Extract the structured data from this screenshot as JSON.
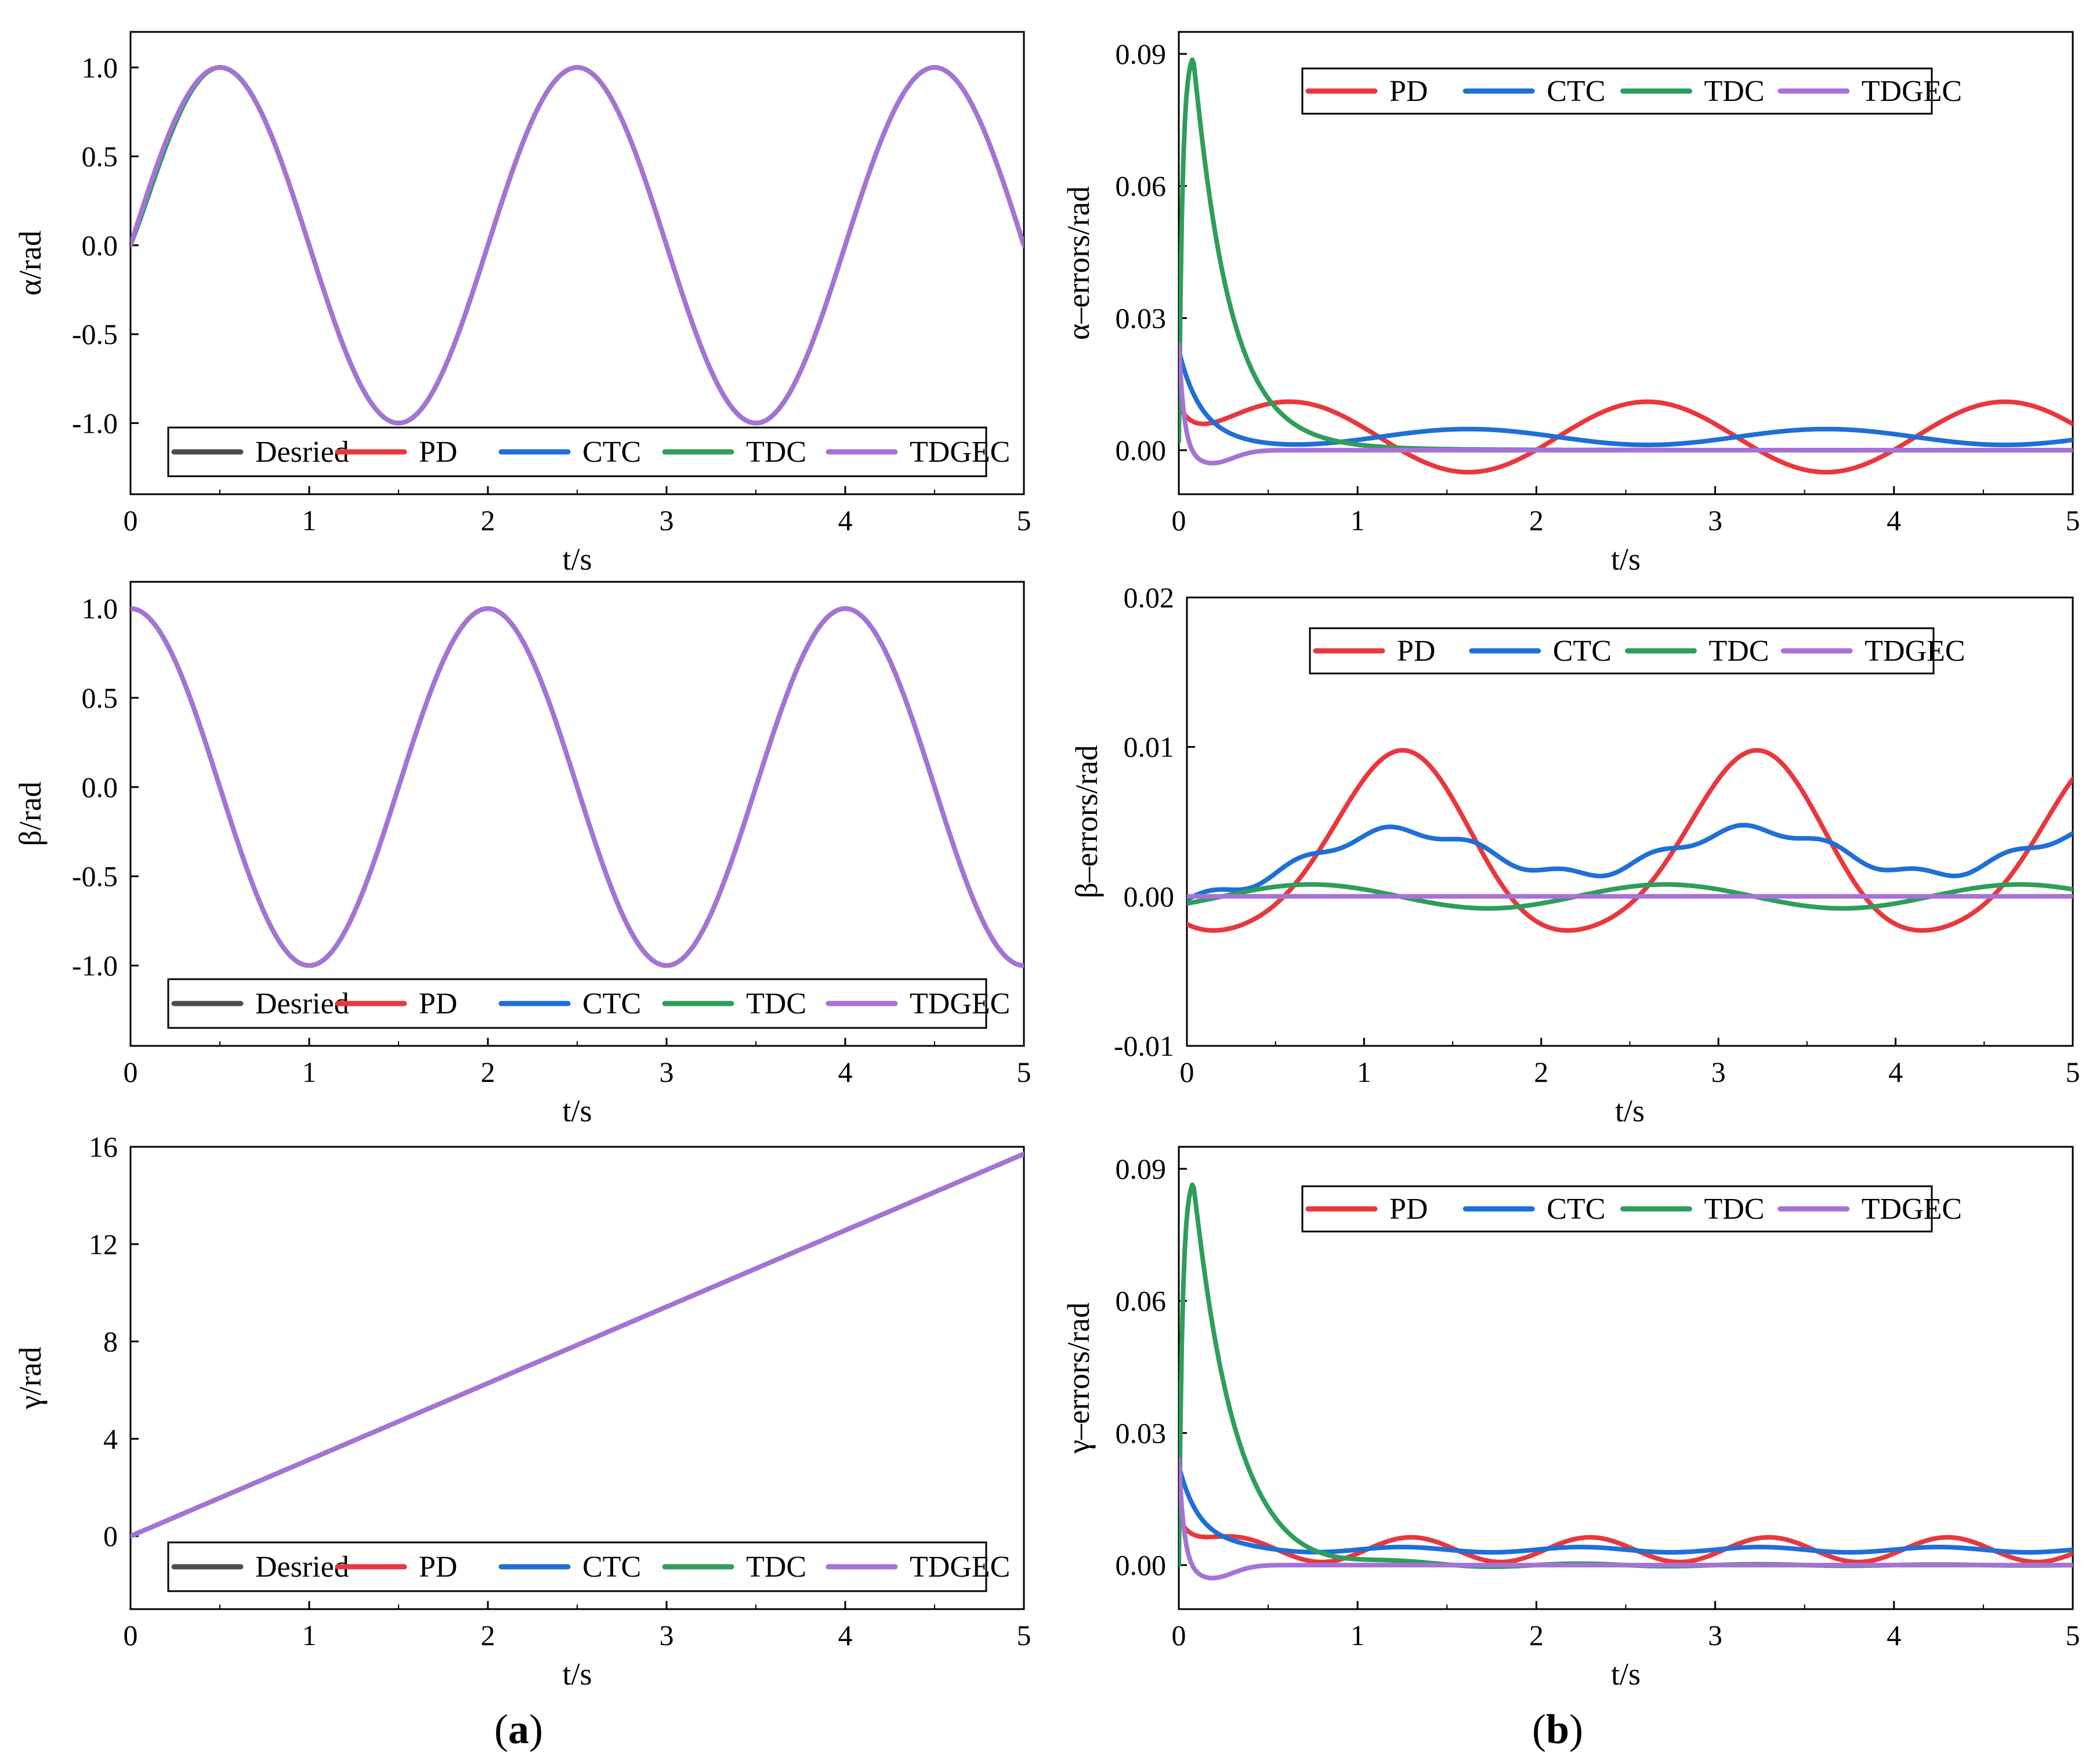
{
  "captions": {
    "a": "a",
    "b": "b"
  },
  "colors": {
    "Desried": "#4d4d4d",
    "PD": "#e8383d",
    "CTC": "#1f6fd6",
    "TDC": "#2e9e5b",
    "TDGEC": "#a772d6"
  },
  "chart_data": [
    {
      "id": "alpha",
      "type": "line",
      "xlabel": "t/s",
      "ylabel": "α/rad",
      "xlim": [
        0,
        5
      ],
      "ylim": [
        -1.4,
        1.2
      ],
      "xticks": [
        0,
        1,
        2,
        3,
        4,
        5
      ],
      "xtick_labels": [
        "0",
        "1",
        "2",
        "3",
        "4",
        "5"
      ],
      "yticks": [
        1,
        0.5,
        0,
        -0.5,
        -1
      ],
      "ytick_labels": [
        "1.0",
        "0.5",
        "0.0",
        "-0.5",
        "-1.0"
      ],
      "legend": [
        "Desried",
        "PD",
        "CTC",
        "TDC",
        "TDGEC"
      ],
      "legend_position": "bottom",
      "series": [
        {
          "name": "Desried",
          "func": "sin(pi*t)"
        },
        {
          "name": "PD",
          "func": "sin(pi*t)"
        },
        {
          "name": "CTC",
          "func": "sin(pi*t)"
        },
        {
          "name": "TDC",
          "func": "sin(pi*t)"
        },
        {
          "name": "TDGEC",
          "func": "sin(pi*t)"
        }
      ]
    },
    {
      "id": "alpha_err",
      "type": "line",
      "xlabel": "t/s",
      "ylabel": "α–errors/rad",
      "xlim": [
        0,
        5
      ],
      "ylim": [
        -0.01,
        0.095
      ],
      "xticks": [
        0,
        1,
        2,
        3,
        4,
        5
      ],
      "xtick_labels": [
        "0",
        "1",
        "2",
        "3",
        "4",
        "5"
      ],
      "yticks": [
        0.09,
        0.06,
        0.03,
        0
      ],
      "ytick_labels": [
        "0.09",
        "0.06",
        "0.03",
        "0.00"
      ],
      "legend": [
        "PD",
        "CTC",
        "TDC",
        "TDGEC"
      ],
      "legend_position": "top",
      "series": [
        {
          "name": "PD",
          "approx_peak": 0.011,
          "approx_trough": -0.005
        },
        {
          "name": "CTC",
          "approx_start": 0.022,
          "approx_mean": 0.003
        },
        {
          "name": "TDC",
          "approx_peak": 0.089,
          "peak_t": 0.08
        },
        {
          "name": "TDGEC",
          "approx_start": 0.025,
          "approx_min": -0.003
        }
      ]
    },
    {
      "id": "beta",
      "type": "line",
      "xlabel": "t/s",
      "ylabel": "β/rad",
      "xlim": [
        0,
        5
      ],
      "ylim": [
        -1.45,
        1.15
      ],
      "xticks": [
        0,
        1,
        2,
        3,
        4,
        5
      ],
      "xtick_labels": [
        "0",
        "1",
        "2",
        "3",
        "4",
        "5"
      ],
      "yticks": [
        1,
        0.5,
        0,
        -0.5,
        -1
      ],
      "ytick_labels": [
        "1.0",
        "0.5",
        "0.0",
        "-0.5",
        "-1.0"
      ],
      "legend": [
        "Desried",
        "PD",
        "CTC",
        "TDC",
        "TDGEC"
      ],
      "legend_position": "bottom",
      "series": [
        {
          "name": "Desried",
          "func": "cos(pi*t)"
        },
        {
          "name": "PD",
          "func": "cos(pi*t)"
        },
        {
          "name": "CTC",
          "func": "cos(pi*t)"
        },
        {
          "name": "TDC",
          "func": "cos(pi*t)"
        },
        {
          "name": "TDGEC",
          "func": "cos(pi*t)"
        }
      ]
    },
    {
      "id": "beta_err",
      "type": "line",
      "xlabel": "t/s",
      "ylabel": "β–errors/rad",
      "xlim": [
        0,
        5
      ],
      "ylim": [
        -0.01,
        0.02
      ],
      "xticks": [
        0,
        1,
        2,
        3,
        4,
        5
      ],
      "xtick_labels": [
        "0",
        "1",
        "2",
        "3",
        "4",
        "5"
      ],
      "yticks": [
        0.02,
        0.01,
        0,
        -0.01
      ],
      "ytick_labels": [
        "0.02",
        "0.01",
        "0.00",
        "-0.01"
      ],
      "legend": [
        "PD",
        "CTC",
        "TDC",
        "TDGEC"
      ],
      "legend_position": "top",
      "series": [
        {
          "name": "PD",
          "approx_peak": 0.009,
          "approx_trough": -0.003
        },
        {
          "name": "CTC",
          "approx_peak": 0.0045,
          "approx_trough": 0.0015
        },
        {
          "name": "TDC",
          "approx_peak": 0.0008,
          "approx_trough": -0.0008
        },
        {
          "name": "TDGEC",
          "approx_value": 0
        }
      ]
    },
    {
      "id": "gamma",
      "type": "line",
      "xlabel": "t/s",
      "ylabel": "γ/rad",
      "xlim": [
        0,
        5
      ],
      "ylim": [
        -3,
        16
      ],
      "xticks": [
        0,
        1,
        2,
        3,
        4,
        5
      ],
      "xtick_labels": [
        "0",
        "1",
        "2",
        "3",
        "4",
        "5"
      ],
      "yticks": [
        16,
        12,
        8,
        4,
        0
      ],
      "ytick_labels": [
        "16",
        "12",
        "8",
        "4",
        "0"
      ],
      "legend": [
        "Desried",
        "PD",
        "CTC",
        "TDC",
        "TDGEC"
      ],
      "legend_position": "bottom",
      "series": [
        {
          "name": "Desried",
          "func": "pi*t"
        },
        {
          "name": "PD",
          "func": "pi*t"
        },
        {
          "name": "CTC",
          "func": "pi*t"
        },
        {
          "name": "TDC",
          "func": "pi*t"
        },
        {
          "name": "TDGEC",
          "func": "pi*t"
        }
      ]
    },
    {
      "id": "gamma_err",
      "type": "line",
      "xlabel": "t/s",
      "ylabel": "γ–errors/rad",
      "xlim": [
        0,
        5
      ],
      "ylim": [
        -0.01,
        0.095
      ],
      "xticks": [
        0,
        1,
        2,
        3,
        4,
        5
      ],
      "xtick_labels": [
        "0",
        "1",
        "2",
        "3",
        "4",
        "5"
      ],
      "yticks": [
        0.09,
        0.06,
        0.03,
        0
      ],
      "ytick_labels": [
        "0.09",
        "0.06",
        "0.03",
        "0.00"
      ],
      "legend": [
        "PD",
        "CTC",
        "TDC",
        "TDGEC"
      ],
      "legend_position": "top",
      "series": [
        {
          "name": "PD",
          "approx_peak": 0.0065,
          "approx_trough": 0.001
        },
        {
          "name": "CTC",
          "approx_start": 0.022,
          "approx_mean": 0.0035
        },
        {
          "name": "TDC",
          "approx_peak": 0.088,
          "peak_t": 0.08
        },
        {
          "name": "TDGEC",
          "approx_start": 0.025,
          "approx_min": -0.003
        }
      ]
    }
  ]
}
